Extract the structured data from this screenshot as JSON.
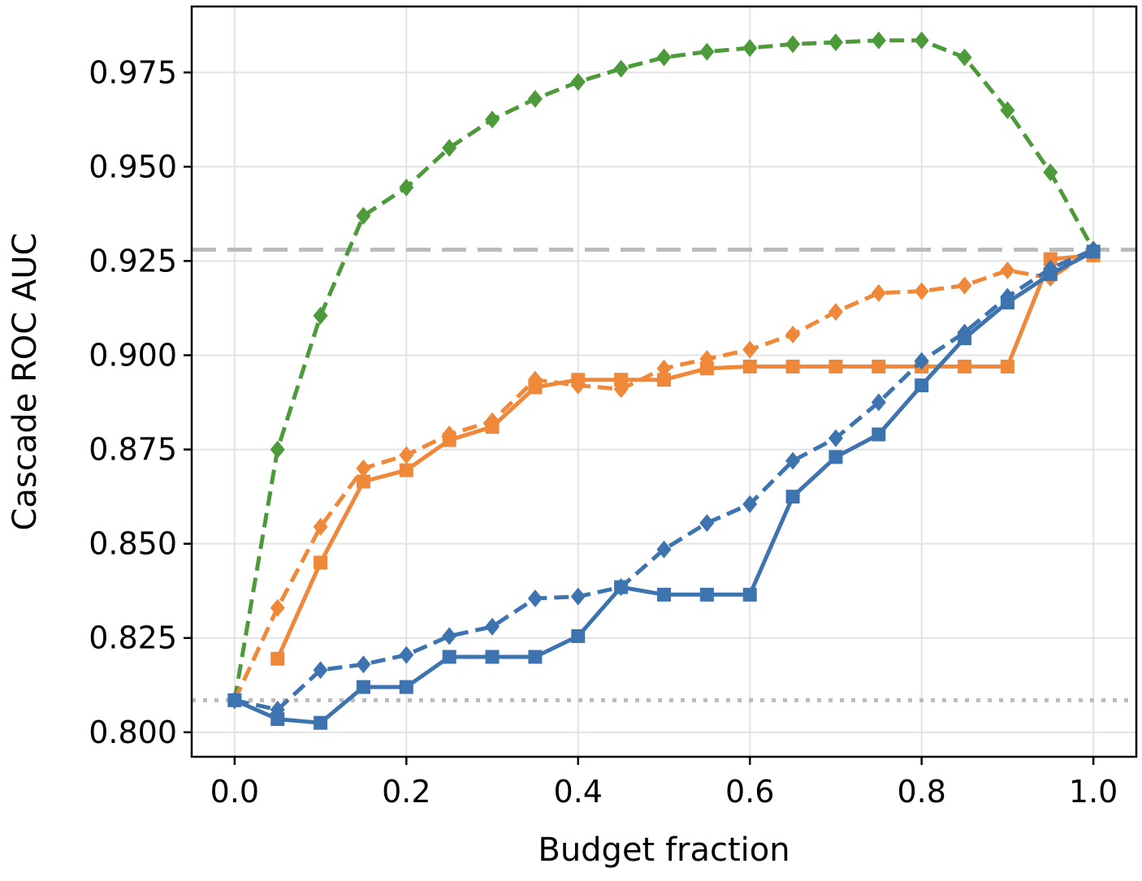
{
  "chart_data": {
    "type": "line",
    "title": "",
    "xlabel": "Budget fraction",
    "ylabel": "Cascade ROC AUC",
    "xlim": [
      -0.05,
      1.05
    ],
    "ylim": [
      0.7935,
      0.9925
    ],
    "x_ticks": [
      0.0,
      0.2,
      0.4,
      0.6,
      0.8,
      1.0
    ],
    "x_tick_labels": [
      "0.0",
      "0.2",
      "0.4",
      "0.6",
      "0.8",
      "1.0"
    ],
    "y_ticks": [
      0.8,
      0.825,
      0.85,
      0.875,
      0.9,
      0.925,
      0.95,
      0.975
    ],
    "y_tick_labels": [
      "0.800",
      "0.825",
      "0.850",
      "0.875",
      "0.900",
      "0.925",
      "0.950",
      "0.975"
    ],
    "grid": true,
    "reference_lines": [
      {
        "y": 0.928,
        "style": "dashed",
        "color": "#bbbbbb"
      },
      {
        "y": 0.8085,
        "style": "dotted",
        "color": "#bbbbbb"
      }
    ],
    "series": [
      {
        "color": "#4c9a3a",
        "line_style": "dashed",
        "marker": "diamond",
        "x": [
          0.0,
          0.05,
          0.1,
          0.15,
          0.2,
          0.25,
          0.3,
          0.35,
          0.4,
          0.45,
          0.5,
          0.55,
          0.6,
          0.65,
          0.7,
          0.75,
          0.8,
          0.85,
          0.9,
          0.95,
          1.0
        ],
        "values": [
          0.8085,
          0.875,
          0.9105,
          0.937,
          0.9445,
          0.955,
          0.9625,
          0.968,
          0.9725,
          0.976,
          0.979,
          0.9805,
          0.9815,
          0.9825,
          0.983,
          0.9835,
          0.9835,
          0.979,
          0.965,
          0.9485,
          0.928
        ]
      },
      {
        "color": "#f0883a",
        "line_style": "dashed",
        "marker": "diamond",
        "x": [
          0.0,
          0.05,
          0.1,
          0.15,
          0.2,
          0.25,
          0.3,
          0.35,
          0.4,
          0.45,
          0.5,
          0.55,
          0.6,
          0.65,
          0.7,
          0.75,
          0.8,
          0.85,
          0.9,
          0.95,
          1.0
        ],
        "values": [
          0.8085,
          0.833,
          0.8545,
          0.87,
          0.8735,
          0.879,
          0.8825,
          0.8935,
          0.892,
          0.891,
          0.8965,
          0.899,
          0.9015,
          0.9055,
          0.9115,
          0.9165,
          0.917,
          0.9185,
          0.9225,
          0.9205,
          0.928
        ]
      },
      {
        "color": "#f0883a",
        "line_style": "solid",
        "marker": "square",
        "x": [
          0.05,
          0.1,
          0.15,
          0.2,
          0.25,
          0.3,
          0.35,
          0.4,
          0.45,
          0.5,
          0.55,
          0.6,
          0.65,
          0.7,
          0.75,
          0.8,
          0.85,
          0.9,
          0.95,
          1.0
        ],
        "values": [
          0.8195,
          0.845,
          0.8665,
          0.8695,
          0.8775,
          0.881,
          0.8915,
          0.8935,
          0.8935,
          0.8935,
          0.8965,
          0.897,
          0.897,
          0.897,
          0.897,
          0.897,
          0.897,
          0.897,
          0.9255,
          0.9265
        ]
      },
      {
        "color": "#3d74b0",
        "line_style": "dashed",
        "marker": "diamond",
        "x": [
          0.0,
          0.05,
          0.1,
          0.15,
          0.2,
          0.25,
          0.3,
          0.35,
          0.4,
          0.45,
          0.5,
          0.55,
          0.6,
          0.65,
          0.7,
          0.75,
          0.8,
          0.85,
          0.9,
          0.95,
          1.0
        ],
        "values": [
          0.8085,
          0.806,
          0.8165,
          0.818,
          0.8205,
          0.8255,
          0.828,
          0.8355,
          0.836,
          0.8385,
          0.8485,
          0.8555,
          0.8605,
          0.872,
          0.878,
          0.8875,
          0.8985,
          0.906,
          0.9155,
          0.923,
          0.928
        ]
      },
      {
        "color": "#3d74b0",
        "line_style": "solid",
        "marker": "square",
        "x": [
          0.0,
          0.05,
          0.1,
          0.15,
          0.2,
          0.25,
          0.3,
          0.35,
          0.4,
          0.45,
          0.5,
          0.55,
          0.6,
          0.65,
          0.7,
          0.75,
          0.8,
          0.85,
          0.9,
          0.95,
          1.0
        ],
        "values": [
          0.8085,
          0.8035,
          0.8025,
          0.812,
          0.812,
          0.82,
          0.82,
          0.82,
          0.8255,
          0.8385,
          0.8365,
          0.8365,
          0.8365,
          0.8625,
          0.873,
          0.879,
          0.892,
          0.9045,
          0.914,
          0.9215,
          0.9275
        ]
      }
    ]
  }
}
